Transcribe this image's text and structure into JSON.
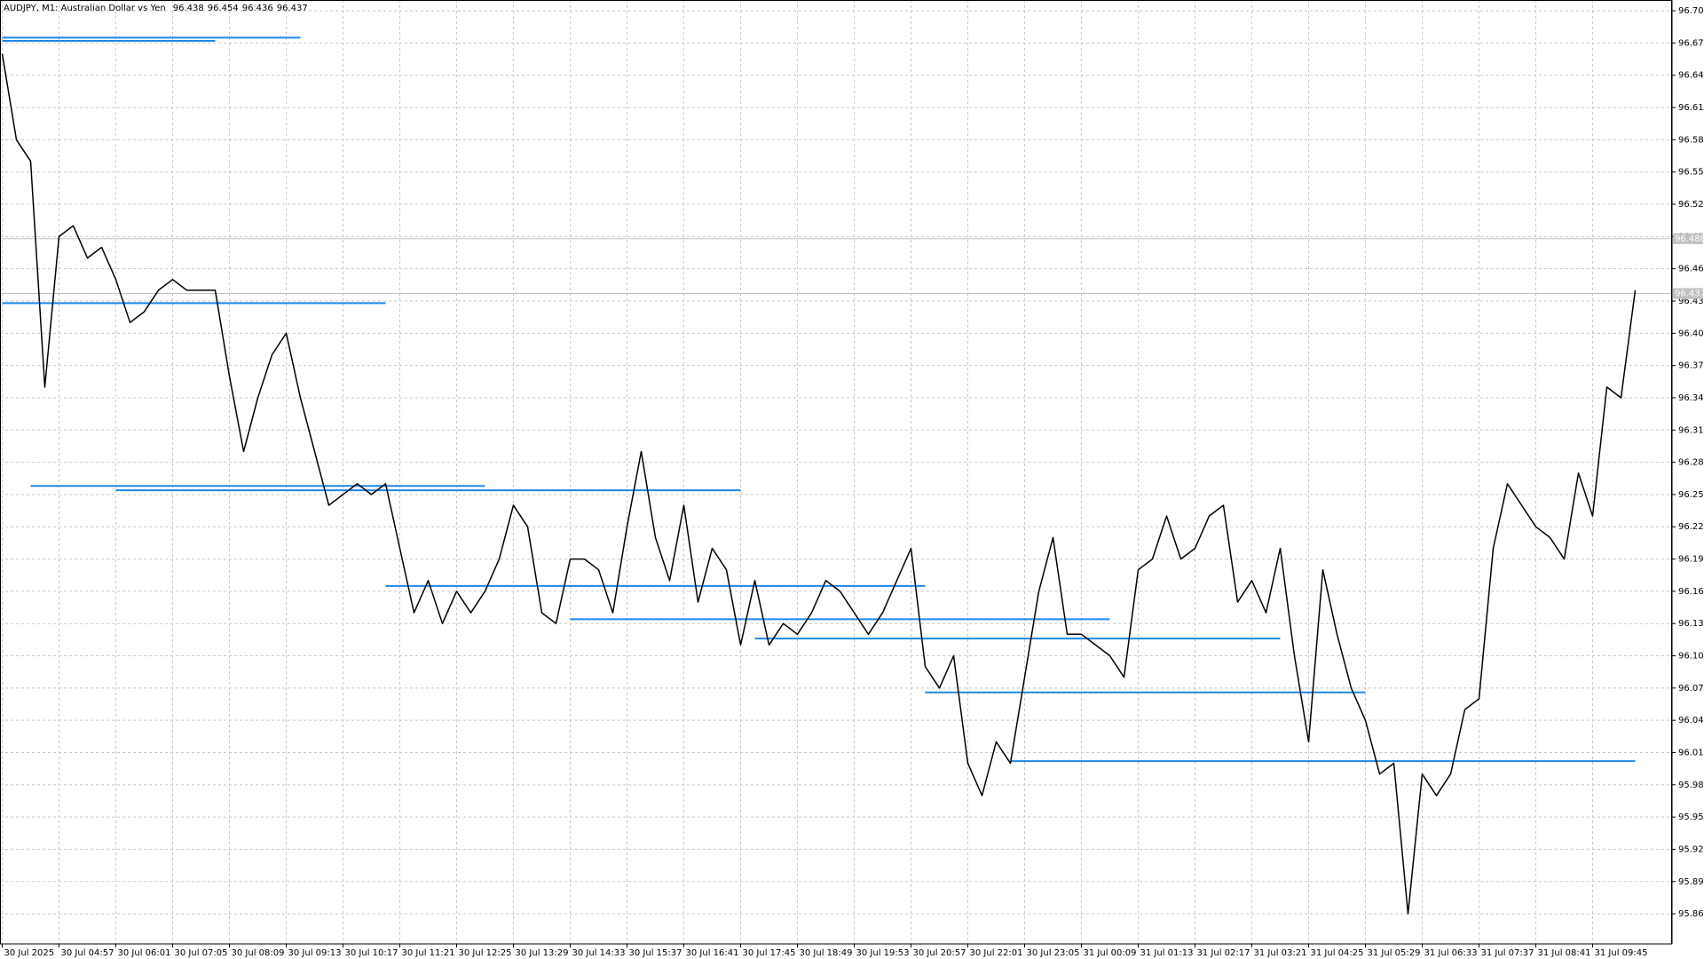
{
  "chart_data": {
    "type": "line",
    "title": "AUDJPY, M1:  Australian Dollar vs Yen",
    "ohlc": [
      96.438,
      96.454,
      96.436,
      96.437
    ],
    "categories": [
      "30 Jul 2025",
      null,
      null,
      null,
      "30 Jul 04:57",
      null,
      null,
      null,
      "30 Jul 06:01",
      null,
      null,
      null,
      "30 Jul 07:05",
      null,
      null,
      null,
      "30 Jul 08:09",
      null,
      null,
      null,
      "30 Jul 09:13",
      null,
      null,
      null,
      "30 Jul 10:17",
      null,
      null,
      null,
      "30 Jul 11:21",
      null,
      null,
      null,
      "30 Jul 12:25",
      null,
      null,
      null,
      "30 Jul 13:29",
      null,
      null,
      null,
      "30 Jul 14:33",
      null,
      null,
      null,
      "30 Jul 15:37",
      null,
      null,
      null,
      "30 Jul 16:41",
      null,
      null,
      null,
      "30 Jul 17:45",
      null,
      null,
      null,
      "30 Jul 18:49",
      null,
      null,
      null,
      "30 Jul 19:53",
      null,
      null,
      null,
      "30 Jul 20:57",
      null,
      null,
      null,
      "30 Jul 22:01",
      null,
      null,
      null,
      "30 Jul 23:05",
      null,
      null,
      null,
      "31 Jul 00:09",
      null,
      null,
      null,
      "31 Jul 01:13",
      null,
      null,
      null,
      "31 Jul 02:17",
      null,
      null,
      null,
      "31 Jul 03:21",
      null,
      null,
      null,
      "31 Jul 04:25",
      null,
      null,
      null,
      "31 Jul 05:29",
      null,
      null,
      null,
      "31 Jul 06:33",
      null,
      null,
      null,
      "31 Jul 07:37",
      null,
      null,
      null,
      "31 Jul 08:41",
      null,
      null,
      null,
      "31 Jul 09:45",
      null,
      null,
      null
    ],
    "series": [
      {
        "color": "#000000",
        "values": [
          96.66,
          96.58,
          96.56,
          96.35,
          96.49,
          96.5,
          96.47,
          96.48,
          96.45,
          96.41,
          96.42,
          96.44,
          96.45,
          96.44,
          96.44,
          96.44,
          96.36,
          96.29,
          96.34,
          96.38,
          96.4,
          96.34,
          96.29,
          96.24,
          96.25,
          96.26,
          96.25,
          96.26,
          96.2,
          96.14,
          96.17,
          96.13,
          96.16,
          96.14,
          96.16,
          96.19,
          96.24,
          96.22,
          96.14,
          96.13,
          96.19,
          96.19,
          96.18,
          96.14,
          96.22,
          96.29,
          96.21,
          96.17,
          96.24,
          96.15,
          96.2,
          96.18,
          96.11,
          96.17,
          96.11,
          96.13,
          96.12,
          96.14,
          96.17,
          96.16,
          96.14,
          96.12,
          96.14,
          96.17,
          96.2,
          96.09,
          96.07,
          96.1,
          96.0,
          95.97,
          96.02,
          96.0,
          96.08,
          96.16,
          96.21,
          96.12,
          96.12,
          96.11,
          96.1,
          96.08,
          96.18,
          96.19,
          96.23,
          96.19,
          96.2,
          96.23,
          96.24,
          96.15,
          96.17,
          96.14,
          96.2,
          96.1,
          96.02,
          96.18,
          96.12,
          96.07,
          96.04,
          95.99,
          96.0,
          95.86,
          95.99,
          95.97,
          95.99,
          96.05,
          96.06,
          96.2,
          96.26,
          96.24,
          96.22,
          96.21,
          96.19,
          96.27,
          96.23,
          96.35,
          96.34,
          96.44
        ]
      }
    ],
    "levels": [
      {
        "value": 96.675,
        "color": "#1e88e5",
        "start": 0,
        "end": 21
      },
      {
        "value": 96.672,
        "color": "#1e88e5",
        "start": 0,
        "end": 15
      },
      {
        "value": 96.428,
        "color": "#1e88e5",
        "start": 0,
        "end": 27
      },
      {
        "value": 96.258,
        "color": "#1e88e5",
        "start": 2,
        "end": 34
      },
      {
        "value": 96.254,
        "color": "#1e88e5",
        "start": 8,
        "end": 52
      },
      {
        "value": 96.165,
        "color": "#1e88e5",
        "start": 27,
        "end": 65
      },
      {
        "value": 96.134,
        "color": "#1e88e5",
        "start": 40,
        "end": 78
      },
      {
        "value": 96.116,
        "color": "#1e88e5",
        "start": 53,
        "end": 90
      },
      {
        "value": 96.066,
        "color": "#1e88e5",
        "start": 65,
        "end": 96
      },
      {
        "value": 96.002,
        "color": "#1e88e5",
        "start": 71,
        "end": 115
      }
    ],
    "price_lines": [
      {
        "value": 96.488,
        "label": "96.488"
      },
      {
        "value": 96.437,
        "label": "96.437"
      }
    ],
    "ylim": [
      95.832,
      96.71
    ],
    "yticks": [
      {
        "value": 96.7,
        "label": "96.700"
      },
      {
        "value": 96.67,
        "label": "96.670"
      },
      {
        "value": 96.64,
        "label": "96.640"
      },
      {
        "value": 96.61,
        "label": "96.610"
      },
      {
        "value": 96.58,
        "label": "96.580"
      },
      {
        "value": 96.55,
        "label": "96.550"
      },
      {
        "value": 96.52,
        "label": "96.520"
      },
      {
        "value": 96.49,
        "label": "96.490"
      },
      {
        "value": 96.46,
        "label": "96.460"
      },
      {
        "value": 96.43,
        "label": "96.430"
      },
      {
        "value": 96.4,
        "label": "96.400"
      },
      {
        "value": 96.37,
        "label": "96.370"
      },
      {
        "value": 96.34,
        "label": "96.340"
      },
      {
        "value": 96.31,
        "label": "96.310"
      },
      {
        "value": 96.28,
        "label": "96.280"
      },
      {
        "value": 96.25,
        "label": "96.250"
      },
      {
        "value": 96.22,
        "label": "96.220"
      },
      {
        "value": 96.19,
        "label": "96.190"
      },
      {
        "value": 96.16,
        "label": "96.160"
      },
      {
        "value": 96.13,
        "label": "96.130"
      },
      {
        "value": 96.1,
        "label": "96.100"
      },
      {
        "value": 96.07,
        "label": "96.070"
      },
      {
        "value": 96.04,
        "label": "96.040"
      },
      {
        "value": 96.01,
        "label": "96.010"
      },
      {
        "value": 95.98,
        "label": "95.980"
      },
      {
        "value": 95.95,
        "label": "95.950"
      },
      {
        "value": 95.92,
        "label": "95.920"
      },
      {
        "value": 95.89,
        "label": "95.890"
      },
      {
        "value": 95.86,
        "label": "95.860"
      }
    ],
    "grid": true
  }
}
